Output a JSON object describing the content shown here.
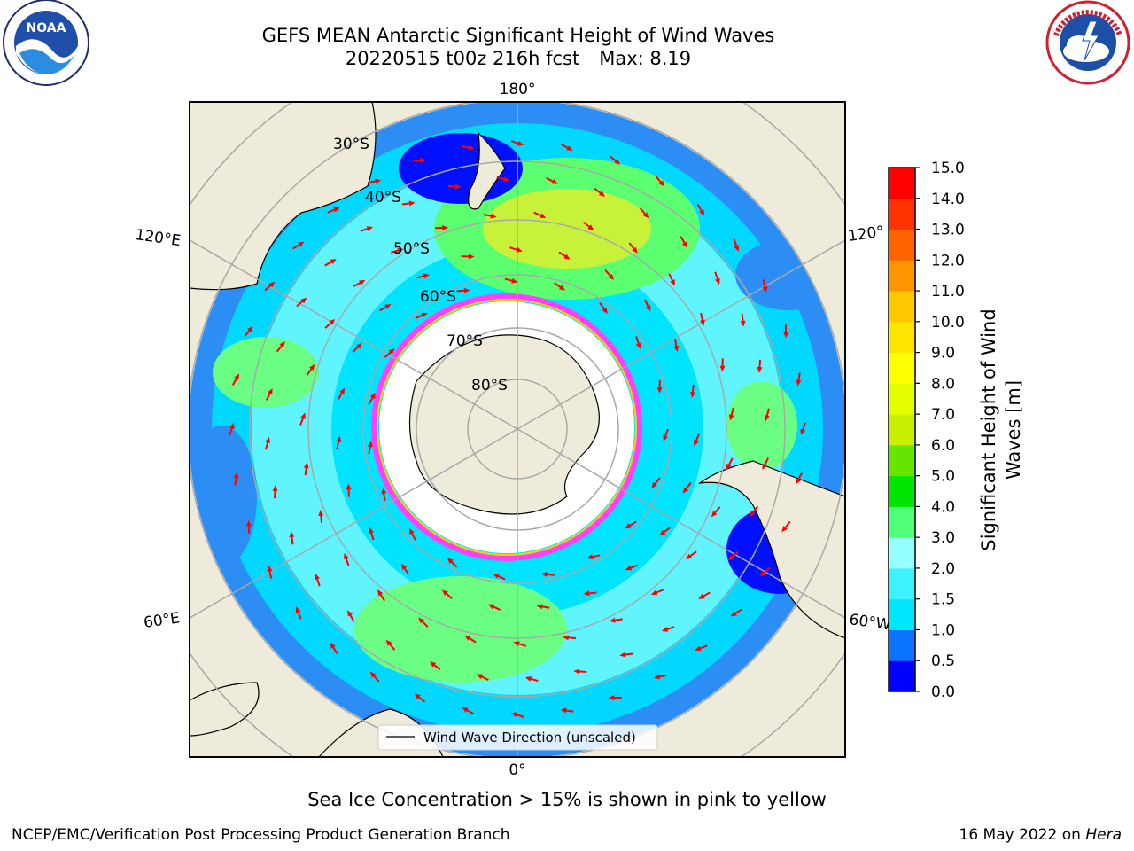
{
  "header": {
    "title_line1": "GEFS MEAN Antarctic Significant Height of Wind Waves",
    "date_run": "20220515 t00z 216h fcst",
    "max_label": "Max: 8.19"
  },
  "logos": {
    "left": {
      "name": "noaa-logo",
      "text": "NOAA"
    },
    "right": {
      "name": "national-weather-service-logo",
      "text": "NATIONAL WEATHER SERVICE"
    }
  },
  "map": {
    "projection": "south-polar-stereographic",
    "longitude_labels": {
      "top": "180°",
      "bottom": "0°",
      "left_upper": "120°E",
      "left_lower": "60°E",
      "right_upper": "120°",
      "right_lower": "60°W"
    },
    "latitude_labels": [
      "30°S",
      "40°S",
      "50°S",
      "60°S",
      "70°S",
      "80°S"
    ],
    "legend_label": "Wind Wave Direction (unscaled)",
    "arrow_color": "#ff0000",
    "land_color": "#efebdb",
    "ice_color": "#ffffff"
  },
  "colorbar": {
    "label": "Significant Height of Wind Waves [m]",
    "label_line1": "Significant Height of Wind",
    "label_line2": "Waves [m]",
    "ticks": [
      "0.0",
      "0.5",
      "1.0",
      "1.5",
      "2.0",
      "3.0",
      "4.0",
      "5.0",
      "6.0",
      "7.0",
      "8.0",
      "9.0",
      "10.0",
      "11.0",
      "12.0",
      "13.0",
      "14.0",
      "15.0"
    ],
    "colors": [
      "#0000ff",
      "#0a73ff",
      "#00e6ff",
      "#3cf2ff",
      "#96ffff",
      "#50ff78",
      "#00e600",
      "#64e600",
      "#c8f000",
      "#e6ff00",
      "#ffff00",
      "#ffe600",
      "#ffc800",
      "#ff9600",
      "#ff6400",
      "#ff3200",
      "#ff0000"
    ]
  },
  "caption": "Sea Ice Concentration > 15% is shown in pink to yellow",
  "footer": {
    "left": "NCEP/EMC/Verification Post Processing Product Generation Branch",
    "right_date": "16 May 2022 on",
    "right_machine": "Hera"
  }
}
